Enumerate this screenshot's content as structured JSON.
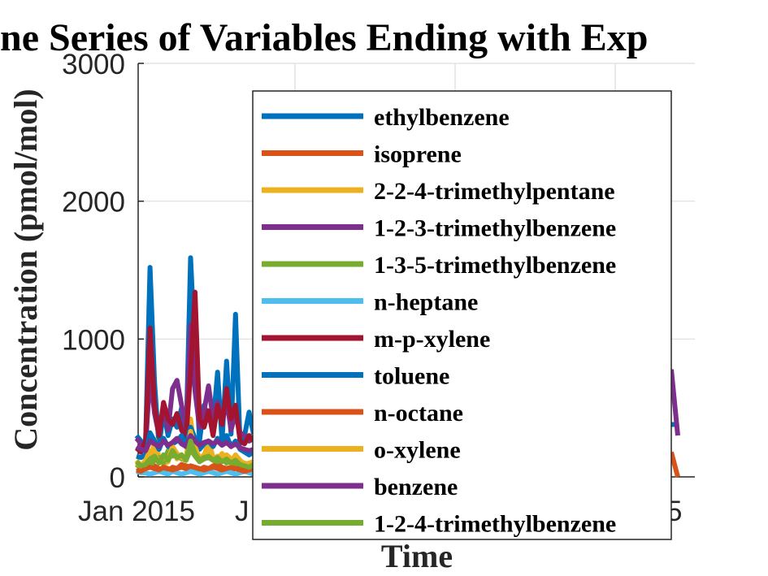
{
  "chart_data": {
    "type": "line",
    "title": "ne Series of Variables Ending with Exp",
    "xlabel": "Time",
    "ylabel": "Concentration (pmol/mol)",
    "ylim": [
      0,
      3000
    ],
    "yticks": [
      0,
      1000,
      2000,
      3000
    ],
    "xticks": [
      "Jan 2015",
      "J",
      "5"
    ],
    "grid": true,
    "legend_position": "upper-right",
    "series": [
      {
        "name": "ethylbenzene",
        "color": "#0072BD",
        "values": [
          300,
          260,
          240,
          1520,
          680,
          220,
          480,
          300,
          420,
          360,
          500,
          260,
          1590,
          900,
          260,
          520,
          420,
          380,
          760,
          260,
          840,
          310,
          1180,
          240,
          300,
          470,
          310
        ]
      },
      {
        "name": "isoprene",
        "color": "#D95319",
        "values": [
          40,
          50,
          60,
          70,
          80,
          60,
          50,
          40,
          70,
          60,
          90,
          80,
          70,
          60,
          50,
          70,
          60,
          80,
          90,
          70,
          60,
          50,
          60,
          70,
          50,
          40,
          60
        ]
      },
      {
        "name": "2-2-4-trimethylpentane",
        "color": "#EDB120",
        "values": [
          120,
          80,
          100,
          90,
          270,
          140,
          90,
          110,
          210,
          130,
          160,
          120,
          420,
          180,
          110,
          150,
          260,
          140,
          120,
          170,
          130,
          110,
          160,
          120,
          90,
          100,
          110
        ]
      },
      {
        "name": "1-2-3-trimethylbenzene",
        "color": "#7E2F8E",
        "values": [
          280,
          240,
          220,
          740,
          460,
          300,
          520,
          340,
          640,
          700,
          520,
          360,
          1100,
          620,
          360,
          480,
          660,
          420,
          540,
          380,
          560,
          340,
          460,
          320,
          300,
          260,
          280
        ]
      },
      {
        "name": "1-3-5-trimethylbenzene",
        "color": "#77AC30",
        "values": [
          90,
          60,
          70,
          80,
          120,
          140,
          100,
          190,
          150,
          170,
          130,
          120,
          200,
          150,
          110,
          130,
          140,
          120,
          110,
          130,
          100,
          120,
          90,
          110,
          80,
          70,
          80
        ]
      },
      {
        "name": "n-heptane",
        "color": "#4DBEEE",
        "values": [
          40,
          30,
          30,
          20,
          30,
          40,
          30,
          20,
          40,
          30,
          20,
          30,
          40,
          30,
          20,
          30,
          40,
          30,
          20,
          30,
          40,
          30,
          20,
          30,
          40,
          30,
          20
        ]
      },
      {
        "name": "m-p-xylene",
        "color": "#A2142F",
        "values": [
          210,
          180,
          260,
          1080,
          520,
          300,
          540,
          420,
          380,
          460,
          340,
          280,
          760,
          1340,
          420,
          360,
          480,
          300,
          520,
          380,
          640,
          420,
          520,
          260,
          240,
          300,
          260
        ]
      },
      {
        "name": "toluene",
        "color": "#0072BD",
        "values": [
          150,
          140,
          160,
          320,
          260,
          200,
          280,
          220,
          240,
          260,
          300,
          220,
          360,
          280,
          200,
          240,
          260,
          220,
          280,
          240,
          300,
          220,
          260,
          200,
          180,
          160,
          180
        ]
      },
      {
        "name": "n-octane",
        "color": "#D95319",
        "values": [
          50,
          40,
          60,
          70,
          60,
          50,
          70,
          60,
          50,
          60,
          70,
          60,
          80,
          70,
          60,
          50,
          60,
          70,
          60,
          50,
          60,
          70,
          60,
          50,
          40,
          50,
          60
        ]
      },
      {
        "name": "o-xylene",
        "color": "#EDB120",
        "values": [
          100,
          80,
          120,
          190,
          160,
          110,
          150,
          120,
          220,
          170,
          140,
          120,
          330,
          220,
          130,
          160,
          180,
          130,
          150,
          120,
          160,
          130,
          140,
          110,
          100,
          90,
          100
        ]
      },
      {
        "name": "benzene",
        "color": "#7E2F8E",
        "values": [
          220,
          200,
          190,
          260,
          240,
          220,
          260,
          230,
          250,
          280,
          240,
          220,
          300,
          260,
          230,
          250,
          260,
          240,
          260,
          230,
          250,
          220,
          240,
          210,
          200,
          190,
          200
        ]
      },
      {
        "name": "1-2-4-trimethylbenzene",
        "color": "#77AC30",
        "values": [
          110,
          80,
          90,
          130,
          150,
          100,
          160,
          120,
          190,
          140,
          160,
          120,
          260,
          170,
          120,
          140,
          150,
          120,
          140,
          110,
          130,
          100,
          120,
          90,
          80,
          70,
          90
        ]
      }
    ],
    "right_edge_series": [
      {
        "color": "#0072BD",
        "values": [
          380,
          380
        ]
      },
      {
        "color": "#7E2F8E",
        "values": [
          780,
          300
        ]
      },
      {
        "color": "#D95319",
        "values": [
          180,
          0
        ]
      }
    ]
  }
}
